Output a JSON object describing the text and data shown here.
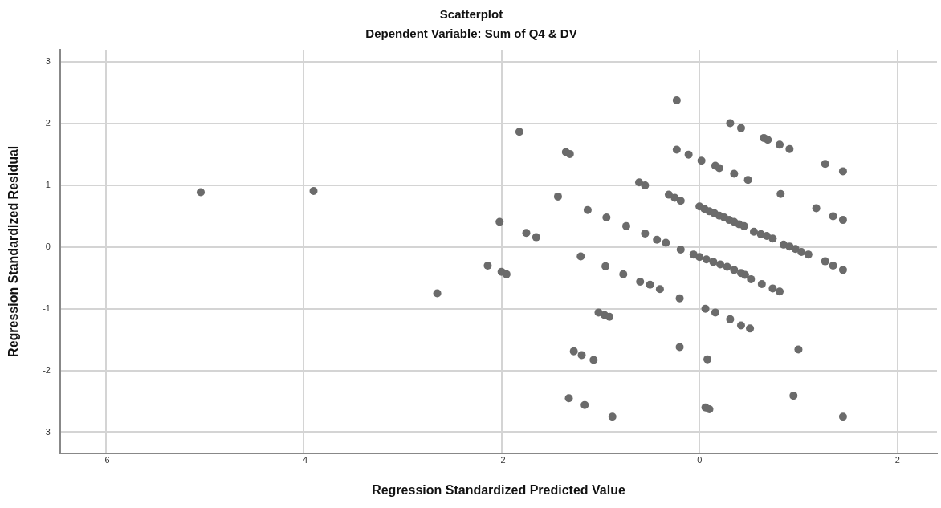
{
  "chart_data": {
    "type": "scatter",
    "title": "Scatterplot",
    "subtitle": "Dependent Variable: Sum of Q4 & DV",
    "xlabel": "Regression Standardized Predicted Value",
    "ylabel": "Regression Standardized Residual",
    "xlim": [
      -6.46,
      2.4
    ],
    "ylim": [
      -3.34,
      3.2
    ],
    "xticks": [
      -6,
      -4,
      -2,
      0,
      2
    ],
    "yticks": [
      -3,
      -2,
      -1,
      0,
      1,
      2,
      3
    ],
    "grid": true,
    "marker": "circle",
    "series": [
      {
        "color": "#6b6b6b",
        "x": [
          -5.04,
          -3.9,
          -2.65,
          -2.02,
          -2.14,
          -2.0,
          -1.95,
          -1.75,
          -1.65,
          -1.82,
          -1.35,
          -1.31,
          -1.43,
          -1.2,
          -1.13,
          -0.94,
          -0.74,
          -0.95,
          -0.77,
          -0.6,
          -0.5,
          -0.4,
          -1.02,
          -0.96,
          -0.91,
          -0.61,
          -0.55,
          -0.55,
          -0.43,
          -0.34,
          -0.31,
          -0.25,
          -0.19,
          -0.23,
          0.31,
          0.42,
          0.65,
          0.69,
          0.81,
          0.91,
          1.27,
          1.45,
          -0.23,
          -0.11,
          0.02,
          0.16,
          0.2,
          0.35,
          0.49,
          0.82,
          1.18,
          1.35,
          1.45,
          0.0,
          0.05,
          0.1,
          0.15,
          0.2,
          0.25,
          0.3,
          0.35,
          0.4,
          0.45,
          0.55,
          0.62,
          0.68,
          0.74,
          0.85,
          0.91,
          0.97,
          1.03,
          1.1,
          1.27,
          1.35,
          1.45,
          -0.19,
          -0.06,
          0.0,
          0.07,
          0.14,
          0.21,
          0.28,
          0.35,
          0.42,
          0.46,
          0.52,
          0.63,
          0.74,
          0.81,
          -0.2,
          0.06,
          0.16,
          0.31,
          0.42,
          0.51,
          -1.27,
          -1.19,
          -1.07,
          -0.2,
          0.08,
          1.0,
          -1.32,
          -1.16,
          -0.88,
          0.06,
          0.1,
          0.95,
          1.45
        ],
        "values": [
          0.89,
          0.91,
          -0.75,
          0.41,
          -0.3,
          -0.4,
          -0.44,
          0.23,
          0.16,
          1.87,
          1.54,
          1.51,
          0.82,
          -0.15,
          0.6,
          0.48,
          0.34,
          -0.31,
          -0.44,
          -0.56,
          -0.61,
          -0.68,
          -1.06,
          -1.1,
          -1.13,
          1.05,
          1.0,
          0.22,
          0.12,
          0.07,
          0.85,
          0.8,
          0.75,
          2.38,
          2.01,
          1.93,
          1.77,
          1.74,
          1.66,
          1.59,
          1.35,
          1.23,
          1.58,
          1.5,
          1.4,
          1.32,
          1.28,
          1.19,
          1.09,
          0.86,
          0.63,
          0.5,
          0.44,
          0.66,
          0.62,
          0.58,
          0.55,
          0.51,
          0.48,
          0.44,
          0.41,
          0.37,
          0.34,
          0.25,
          0.21,
          0.18,
          0.14,
          0.04,
          0.01,
          -0.03,
          -0.08,
          -0.12,
          -0.23,
          -0.3,
          -0.37,
          -0.04,
          -0.12,
          -0.16,
          -0.2,
          -0.24,
          -0.28,
          -0.32,
          -0.37,
          -0.42,
          -0.45,
          -0.52,
          -0.6,
          -0.67,
          -0.72,
          -0.83,
          -1.0,
          -1.06,
          -1.17,
          -1.27,
          -1.32,
          -1.69,
          -1.75,
          -1.83,
          -1.62,
          -1.82,
          -1.66,
          -2.45,
          -2.56,
          -2.75,
          -2.6,
          -2.63,
          -2.41,
          -2.75
        ]
      }
    ]
  }
}
